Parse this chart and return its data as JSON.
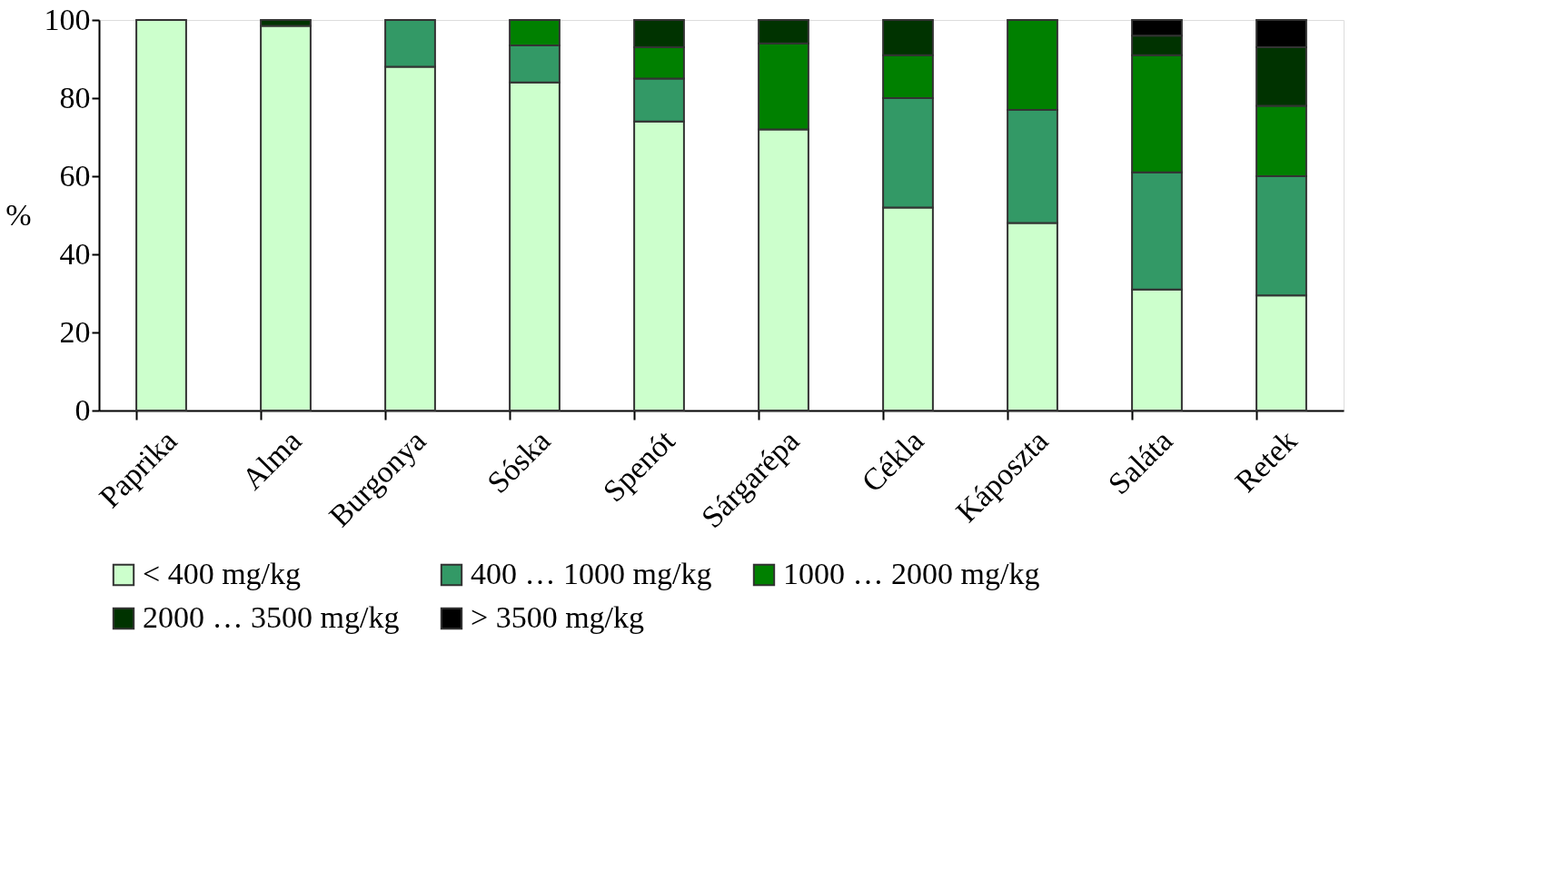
{
  "chart_data": {
    "type": "bar",
    "stacked": true,
    "ylabel": "%",
    "categories": [
      "Paprika",
      "Alma",
      "Burgonya",
      "Sóska",
      "Spenót",
      "Sárgarépa",
      "Cékla",
      "Káposzta",
      "Saláta",
      "Retek"
    ],
    "series": [
      {
        "name": "< 400 mg/kg",
        "color": "#ccffcc",
        "values": [
          100,
          98.5,
          88,
          84,
          74,
          72,
          52,
          48,
          31,
          29.5
        ]
      },
      {
        "name": "400 … 1000 mg/kg",
        "color": "#339966",
        "values": [
          null,
          null,
          12,
          9.5,
          11,
          null,
          28,
          29,
          30,
          30.5
        ]
      },
      {
        "name": "1000 … 2000 mg/kg",
        "color": "#008000",
        "values": [
          null,
          null,
          null,
          6.5,
          8,
          22,
          11,
          23,
          30,
          18
        ]
      },
      {
        "name": "2000 … 3500 mg/kg",
        "color": "#003300",
        "values": [
          null,
          1.5,
          null,
          null,
          7,
          6,
          9,
          null,
          5,
          15
        ]
      },
      {
        "name": "> 3500 mg/kg",
        "color": "#000000",
        "values": [
          null,
          null,
          null,
          null,
          null,
          null,
          null,
          null,
          4,
          7
        ]
      }
    ],
    "ylim": [
      0,
      100
    ],
    "yticks": [
      0,
      20,
      40,
      60,
      80,
      100
    ],
    "grid": false,
    "legend": "bottom"
  }
}
